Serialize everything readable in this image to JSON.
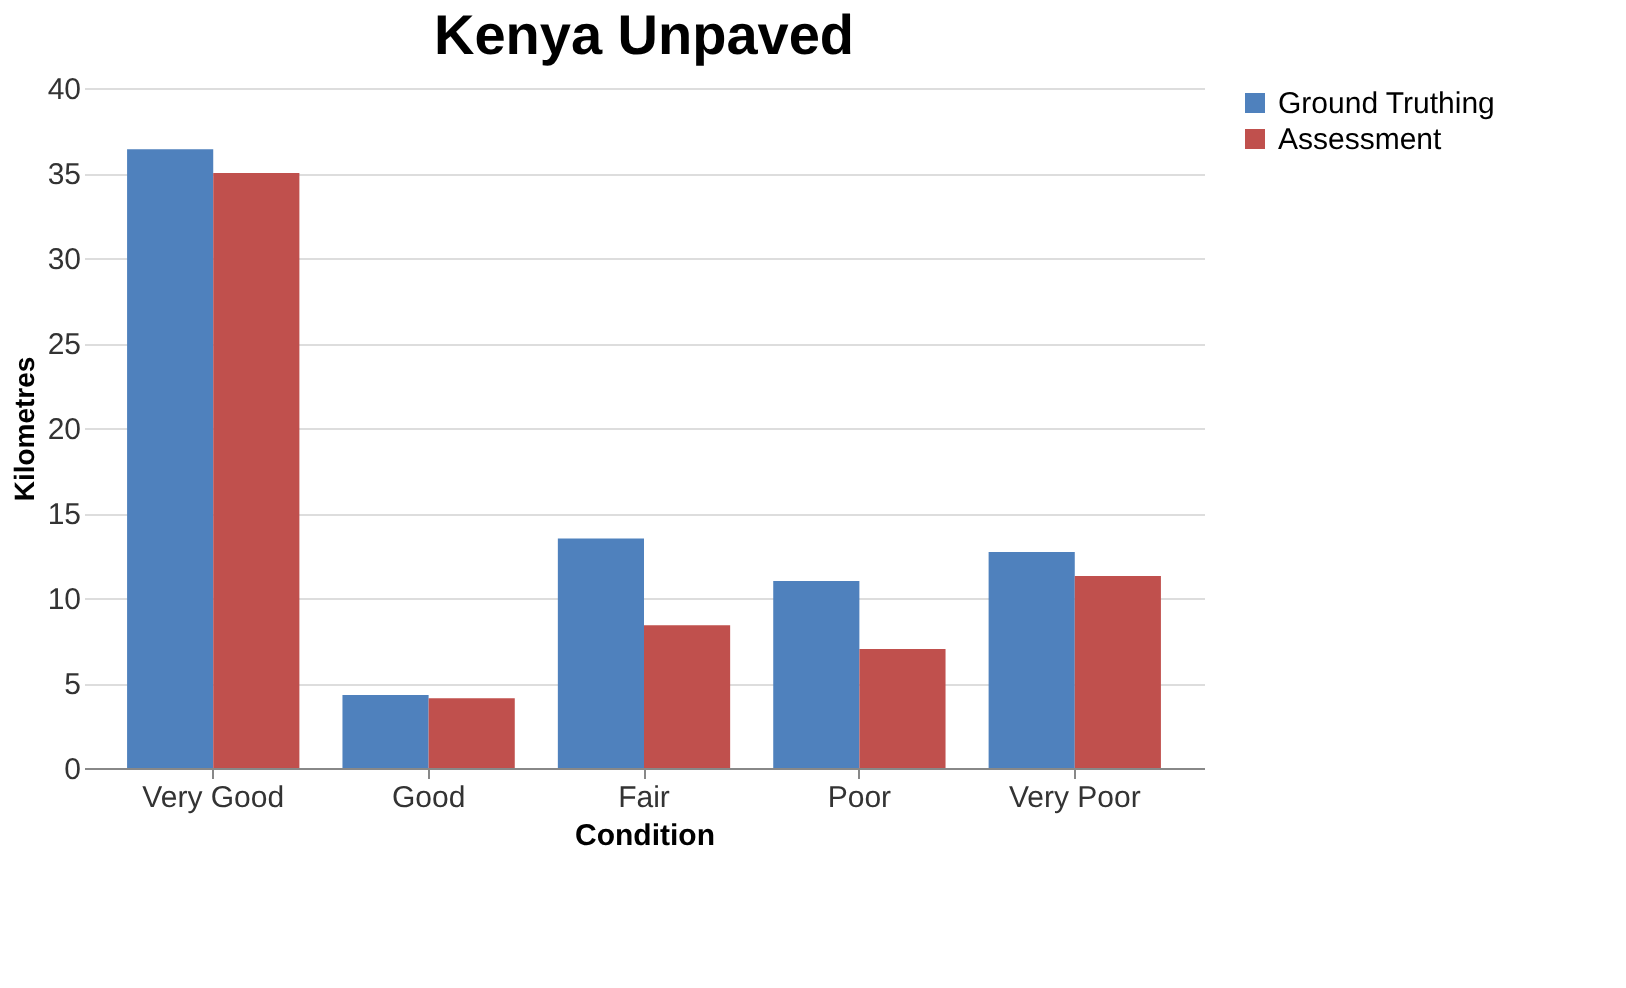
{
  "chart_data": {
    "type": "bar",
    "title": "Kenya Unpaved",
    "xlabel": "Condition",
    "ylabel": "Kilometres",
    "categories": [
      "Very Good",
      "Good",
      "Fair",
      "Poor",
      "Very Poor"
    ],
    "series": [
      {
        "name": "Ground Truthing",
        "color": "#4f81bd",
        "values": [
          36.4,
          4.3,
          13.5,
          11.0,
          12.7
        ]
      },
      {
        "name": "Assessment",
        "color": "#c0504d",
        "values": [
          35.0,
          4.1,
          8.4,
          7.0,
          11.3
        ]
      }
    ],
    "ylim": [
      0,
      40
    ],
    "yticks": [
      0,
      5,
      10,
      15,
      20,
      25,
      30,
      35,
      40
    ],
    "grid": "y",
    "legend": "right"
  }
}
